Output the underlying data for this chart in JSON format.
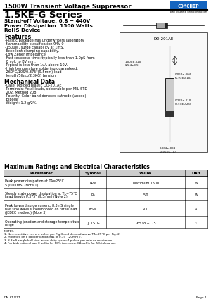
{
  "title_top": "1500W Transient Voltage Suppressor",
  "title_main": "1.5KE-G Series",
  "subtitle_lines": [
    "Stand-off Voltage: 6.8 ~ 440V",
    "Power Dissipation: 1500 Watts",
    "RoHS Device"
  ],
  "logo_text": "COMCHIP",
  "logo_sub": "SMD Discrete Semiconductors",
  "features_title": "Features",
  "features": [
    "-Plastic package has underwriters laboratory",
    " flammability classification 94V-0",
    "-1500W, surge capability at 1mS.",
    "-Excellent clamping capability.",
    "-Low Zener impedance.",
    "-Fast response time: typically less than 1.0pS from",
    " 0 volt to BV min.",
    "-Typical is less than 1uA above 10V.",
    "-High temperature soldering guaranteed:",
    " 260°C/10S/0.375\"(9.5mm) lead",
    " length/5lbs.,(2.3KG) tension"
  ],
  "mech_title": "Mechanical Data",
  "mech": [
    "-Case: Molded plastic DO-201AE",
    "-Terminals: Axial leads, solderable per MIL-STD-",
    " 202, Method 208",
    "-Polarity: Color band denotes cathode (anode)",
    " bipolar",
    "-Weight: 1.2 g/2%"
  ],
  "diode_label": "DO-201AE",
  "table_title": "Maximum Ratings and Electrical Characteristics",
  "table_headers": [
    "Parameter",
    "Symbol",
    "Value",
    "Unit"
  ],
  "table_rows": [
    [
      "Peak power dissipation at TA=25°C\n5 μs=1mS  (Note 1)",
      "PPM",
      "Maximum 1500",
      "W"
    ],
    [
      "Steady state power dissipation at TL=75°C\nLead length 0.375\" (9.5mm) (Note 2)",
      "Po",
      "5.0",
      "W"
    ],
    [
      "Peak forward surge current, 8.3mS single\nhalf sine wave superimposed on rated load\n(JEDEC method) (Note 3)",
      "IFSM",
      "200",
      "A"
    ],
    [
      "Operating junction and storage temperature\nrange",
      "TJ, TSTG",
      "-65 to +175",
      "°C"
    ]
  ],
  "notes": [
    "NOTES:",
    "1. Non-repetitive current pulse, per Fig.3 and derated above TA=25°C per Fig. 2.",
    "2. Mounted on a copper land areas of 0.79\" (20mm²).",
    "3. 8.3mS single half sine-wave, duty cycle=4 pulses per minute maximum.",
    "4. For bidirectional use C suffix for 10% tolerance, CA suffix for 5% tolerance."
  ],
  "footer_left": "DAI-KT-V17",
  "footer_right": "Page 1",
  "bg_color": "#ffffff"
}
